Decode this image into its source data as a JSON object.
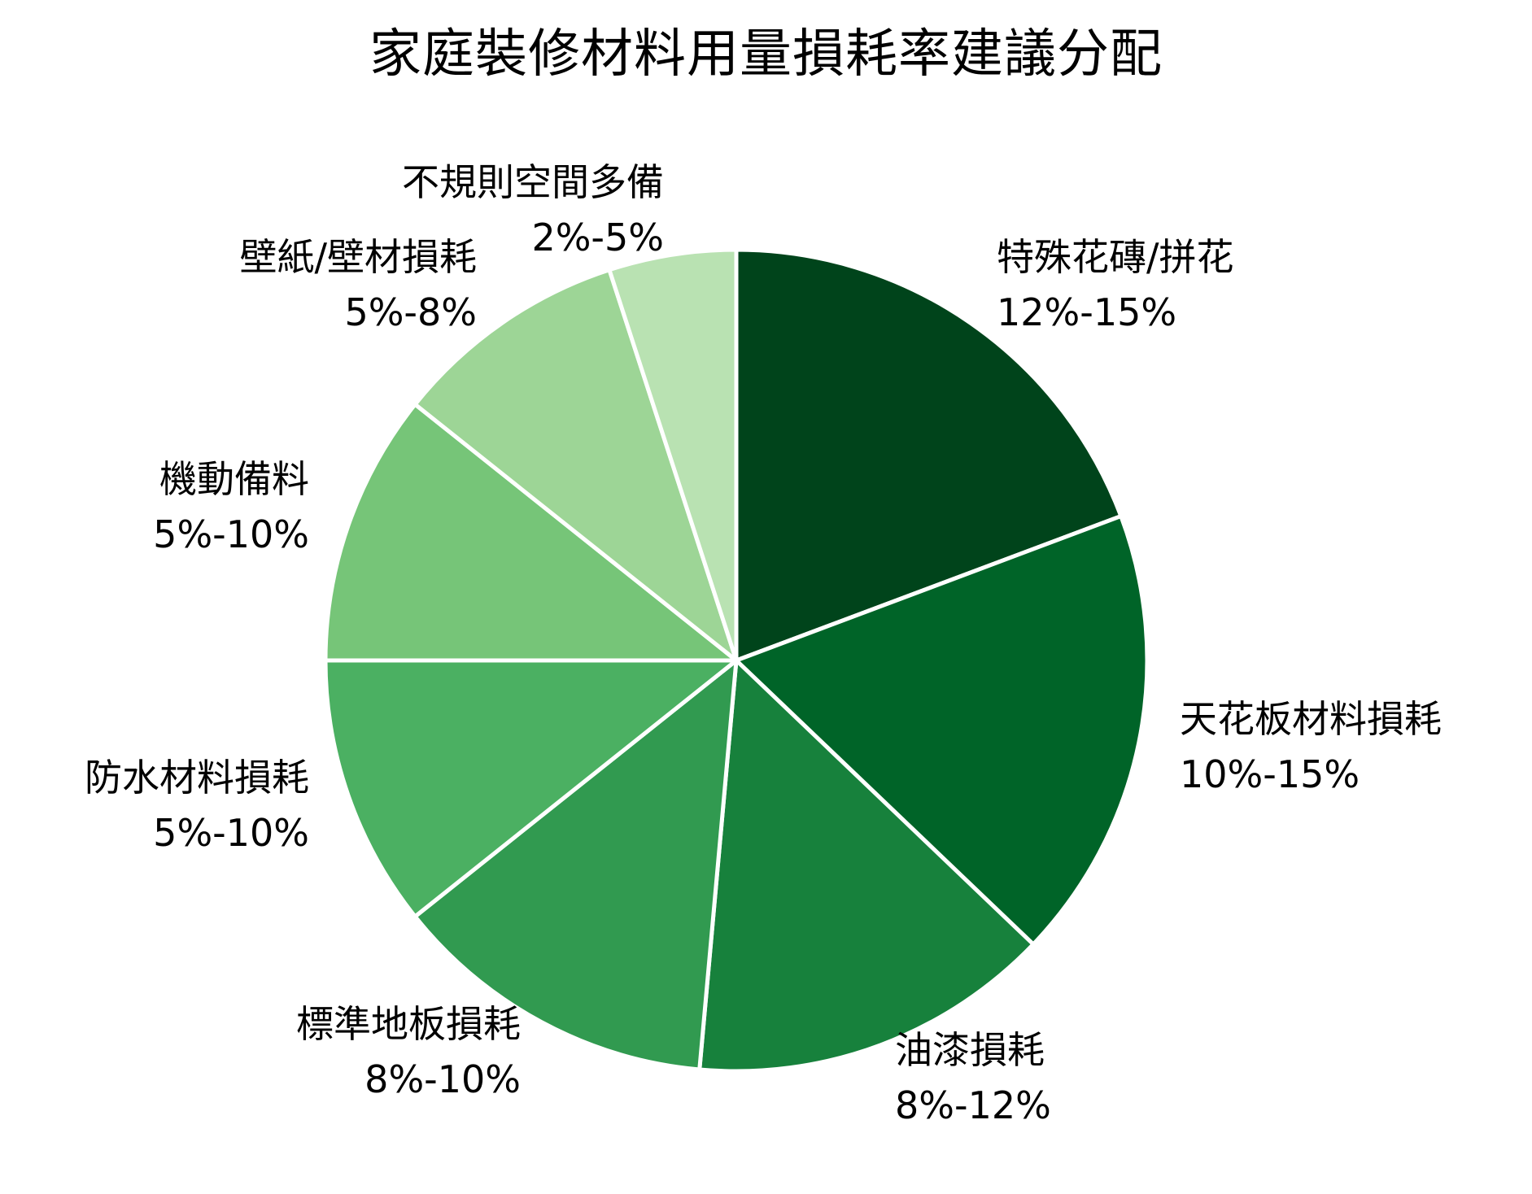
{
  "chart_data": {
    "type": "pie",
    "title": "家庭裝修材料用量損耗率建議分配",
    "start_angle": "12 o'clock, clockwise",
    "categories": [
      "特殊花磚/拼花",
      "天花板材料損耗",
      "油漆損耗",
      "標準地板損耗",
      "防水材料損耗",
      "機動備料",
      "壁紙/壁材損耗",
      "不規則空間多備"
    ],
    "ranges": [
      "12%-15%",
      "10%-15%",
      "8%-12%",
      "8%-10%",
      "5%-10%",
      "5%-10%",
      "5%-8%",
      "2%-5%"
    ],
    "values": [
      13.5,
      12.5,
      10,
      9,
      7.5,
      7.5,
      6.5,
      3.5
    ],
    "percent_of_total": [
      19.3,
      17.9,
      14.3,
      12.9,
      10.7,
      10.7,
      9.3,
      5.0
    ],
    "colors": [
      "#00441b",
      "#006428",
      "#17813c",
      "#319a50",
      "#4bb062",
      "#76c578",
      "#9dd596",
      "#b9e2b2"
    ],
    "legend": "none (labels placed outside slices)",
    "slice_border_color": "#ffffff"
  },
  "labels": [
    {
      "name": "特殊花磚/拼花",
      "range": "12%-15%"
    },
    {
      "name": "天花板材料損耗",
      "range": "10%-15%"
    },
    {
      "name": "油漆損耗",
      "range": "8%-12%"
    },
    {
      "name": "標準地板損耗",
      "range": "8%-10%"
    },
    {
      "name": "防水材料損耗",
      "range": "5%-10%"
    },
    {
      "name": "機動備料",
      "range": "5%-10%"
    },
    {
      "name": "壁紙/壁材損耗",
      "range": "5%-8%"
    },
    {
      "name": "不規則空間多備",
      "range": "2%-5%"
    }
  ]
}
